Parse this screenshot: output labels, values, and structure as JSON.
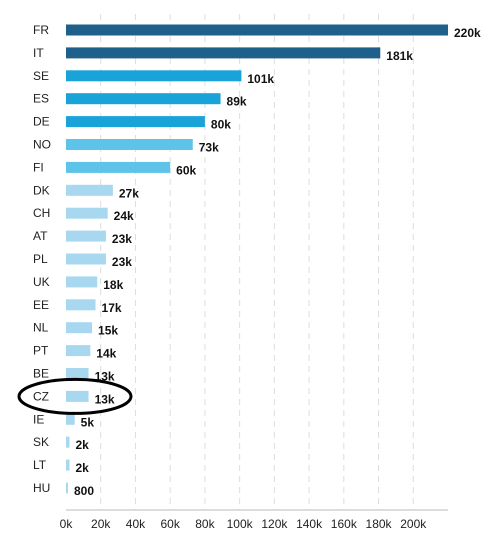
{
  "chart_data": {
    "type": "bar",
    "orientation": "horizontal",
    "categories": [
      "FR",
      "IT",
      "SE",
      "ES",
      "DE",
      "NO",
      "FI",
      "DK",
      "CH",
      "AT",
      "PL",
      "UK",
      "EE",
      "NL",
      "PT",
      "BE",
      "CZ",
      "IE",
      "SK",
      "LT",
      "HU"
    ],
    "values": [
      220000,
      181000,
      101000,
      89000,
      80000,
      73000,
      60000,
      27000,
      24000,
      23000,
      23000,
      18000,
      17000,
      15000,
      14000,
      13000,
      13000,
      5000,
      2000,
      2000,
      800
    ],
    "value_labels": [
      "220k",
      "181k",
      "101k",
      "89k",
      "80k",
      "73k",
      "60k",
      "27k",
      "24k",
      "23k",
      "23k",
      "18k",
      "17k",
      "15k",
      "14k",
      "13k",
      "13k",
      "5k",
      "2k",
      "2k",
      "800"
    ],
    "colors": [
      "#1f5f8b",
      "#1f5f8b",
      "#1aa3d9",
      "#1aa3d9",
      "#1aa3d9",
      "#5ec3e8",
      "#5ec3e8",
      "#a8d8ef",
      "#a8d8ef",
      "#a8d8ef",
      "#a8d8ef",
      "#a8d8ef",
      "#a8d8ef",
      "#a8d8ef",
      "#a8d8ef",
      "#a8d8ef",
      "#a8d8ef",
      "#a8d8ef",
      "#a8d8ef",
      "#a8d8ef",
      "#a8d8ef"
    ],
    "x_ticks": [
      "0k",
      "20k",
      "40k",
      "60k",
      "80k",
      "100k",
      "120k",
      "140k",
      "160k",
      "180k",
      "200k"
    ],
    "x_tick_values": [
      0,
      20000,
      40000,
      60000,
      80000,
      100000,
      120000,
      140000,
      160000,
      180000,
      200000
    ],
    "xlim": [
      0,
      220000
    ],
    "grid": "vertical dashed",
    "title": "",
    "xlabel": "",
    "ylabel": "",
    "annotation": {
      "type": "ellipse",
      "target": "CZ",
      "color": "#000000"
    }
  }
}
